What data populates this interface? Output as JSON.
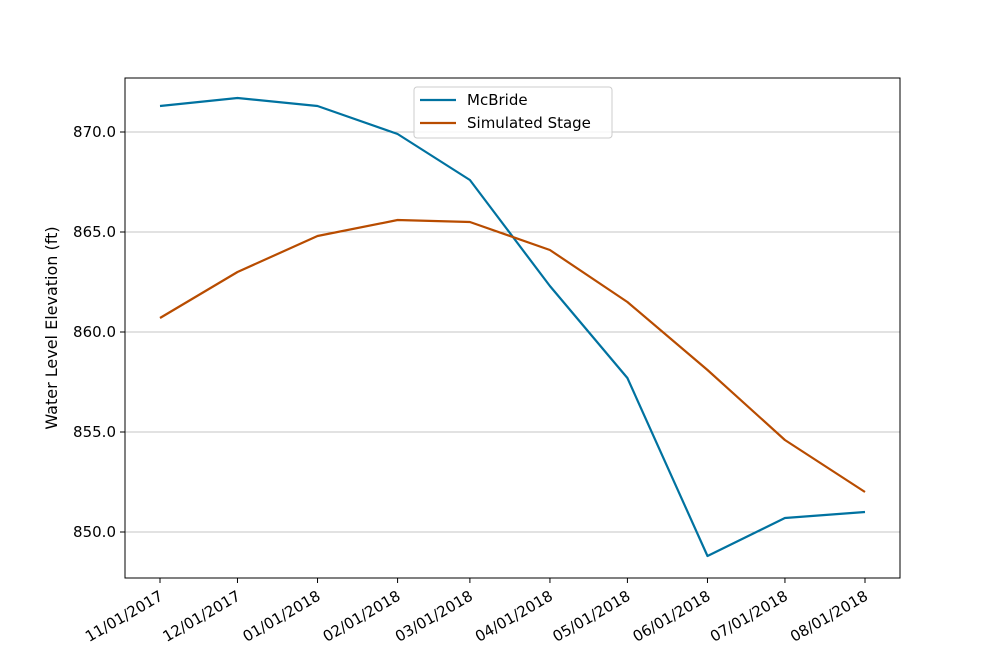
{
  "chart_data": {
    "type": "line",
    "title": "",
    "xlabel": "",
    "ylabel": "Water Level Elevation (ft)",
    "x": [
      "11/01/2017",
      "12/01/2017",
      "01/01/2018",
      "02/01/2018",
      "03/01/2018",
      "04/01/2018",
      "05/01/2018",
      "06/01/2018",
      "07/01/2018",
      "08/01/2018"
    ],
    "x_dates": [
      "2017-11-01",
      "2017-12-01",
      "2018-01-01",
      "2018-02-01",
      "2018-03-01",
      "2018-04-01",
      "2018-05-01",
      "2018-06-01",
      "2018-07-01",
      "2018-08-01"
    ],
    "ylim": [
      847.7,
      872.7
    ],
    "yticks": [
      "850.0",
      "855.0",
      "860.0",
      "865.0",
      "870.0"
    ],
    "ytick_values": [
      850,
      855,
      860,
      865,
      870
    ],
    "grid": "horizontal",
    "legend_position": "top-center",
    "series": [
      {
        "name": "McBride",
        "color": "#0072a0",
        "values": [
          871.3,
          871.7,
          871.3,
          869.9,
          867.6,
          862.3,
          857.7,
          848.8,
          850.7,
          851.0
        ]
      },
      {
        "name": "Simulated Stage",
        "color": "#b84c00",
        "values": [
          860.7,
          863.0,
          864.8,
          865.6,
          865.5,
          864.1,
          861.5,
          858.1,
          854.6,
          852.0
        ]
      }
    ]
  }
}
